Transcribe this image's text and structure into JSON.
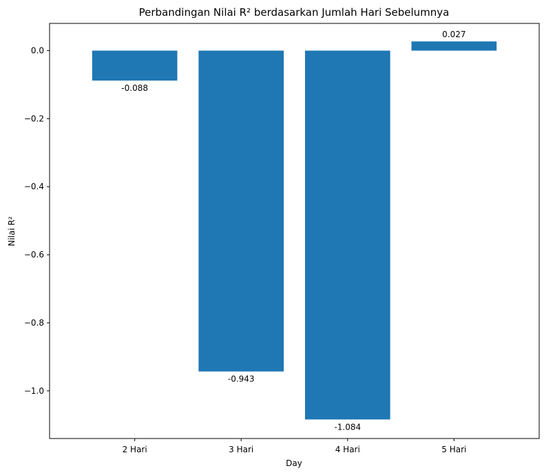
{
  "chart_data": {
    "type": "bar",
    "title": "Perbandingan Nilai R² berdasarkan Jumlah Hari Sebelumnya",
    "xlabel": "Day",
    "ylabel": "Nilai R²",
    "categories": [
      "2 Hari",
      "3 Hari",
      "4 Hari",
      "5 Hari"
    ],
    "values": [
      -0.088,
      -0.943,
      -1.084,
      0.027
    ],
    "value_labels": [
      "-0.088",
      "-0.943",
      "-1.084",
      "0.027"
    ],
    "ylim": [
      -1.14,
      0.08
    ],
    "yticks": [
      0.0,
      -0.2,
      -0.4,
      -0.6,
      -0.8,
      -1.0
    ],
    "ytick_labels": [
      "0.0",
      "−0.2",
      "−0.4",
      "−0.6",
      "−0.8",
      "−1.0"
    ],
    "bar_color": "#1f77b4",
    "grid": false,
    "legend": "none"
  }
}
